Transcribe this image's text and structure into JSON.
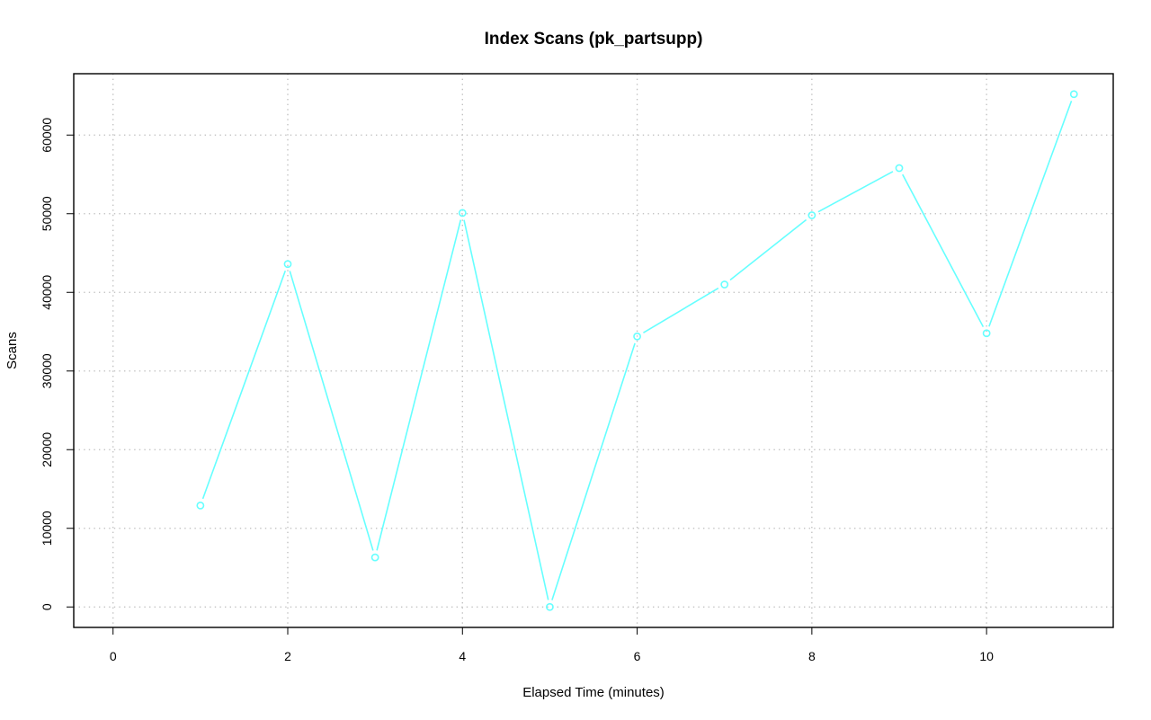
{
  "chart_data": {
    "type": "line",
    "title": "Index Scans (pk_partsupp)",
    "xlabel": "Elapsed Time (minutes)",
    "ylabel": "Scans",
    "xlim": [
      -0.45,
      11.45
    ],
    "ylim": [
      -2600,
      67800
    ],
    "x_ticks": [
      0,
      2,
      4,
      6,
      8,
      10
    ],
    "y_ticks": [
      0,
      10000,
      20000,
      30000,
      40000,
      50000,
      60000
    ],
    "x_tick_labels": [
      "0",
      "2",
      "4",
      "6",
      "8",
      "10"
    ],
    "y_tick_labels": [
      "0",
      "10000",
      "20000",
      "30000",
      "40000",
      "50000",
      "60000"
    ],
    "grid": true,
    "series": [
      {
        "color": "#66ffff",
        "x": [
          1,
          2,
          3,
          4,
          5,
          6,
          7,
          8,
          9,
          10,
          11
        ],
        "values": [
          12900,
          43600,
          6300,
          50100,
          0,
          34400,
          41000,
          49800,
          55800,
          34800,
          65200
        ]
      }
    ]
  }
}
